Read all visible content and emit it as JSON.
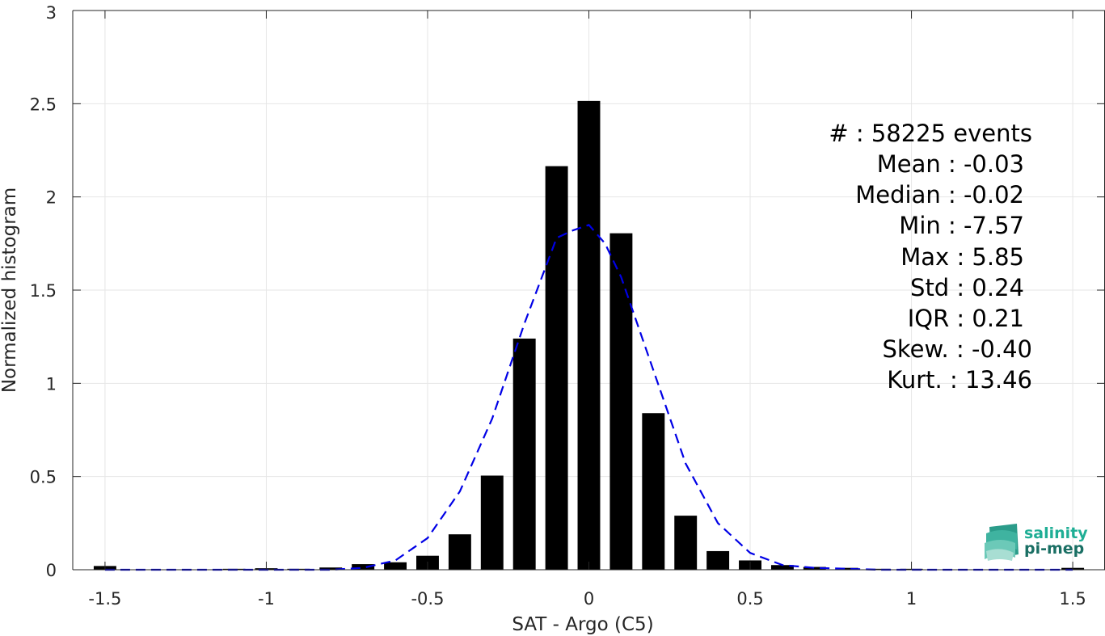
{
  "chart_data": {
    "type": "bar",
    "xlabel": "SAT - Argo (C5)",
    "ylabel": "Normalized histogram",
    "xlim": [
      -1.6,
      1.6
    ],
    "ylim": [
      0,
      3
    ],
    "xticks": [
      -1.5,
      -1,
      -0.5,
      0,
      0.5,
      1,
      1.5
    ],
    "xtick_labels": [
      "-1.5",
      "-1",
      "-0.5",
      "0",
      "0.5",
      "1",
      "1.5"
    ],
    "yticks": [
      0,
      0.5,
      1,
      1.5,
      2,
      2.5,
      3
    ],
    "ytick_labels": [
      "0",
      "0.5",
      "1",
      "1.5",
      "2",
      "2.5",
      "3"
    ],
    "grid": true,
    "bin_width": 0.1,
    "bars": {
      "color": "#000000",
      "x": [
        -1.5,
        -1.4,
        -1.3,
        -1.2,
        -1.1,
        -1.0,
        -0.9,
        -0.8,
        -0.7,
        -0.6,
        -0.5,
        -0.4,
        -0.3,
        -0.2,
        -0.1,
        0.0,
        0.1,
        0.2,
        0.3,
        0.4,
        0.5,
        0.6,
        0.7,
        0.8,
        0.9,
        1.0,
        1.1,
        1.2,
        1.3,
        1.4,
        1.5
      ],
      "values": [
        0.02,
        0.0,
        0.0,
        0.0,
        0.005,
        0.008,
        0.005,
        0.012,
        0.03,
        0.04,
        0.075,
        0.19,
        0.505,
        1.24,
        2.165,
        2.515,
        1.805,
        0.84,
        0.29,
        0.1,
        0.05,
        0.025,
        0.015,
        0.01,
        0.005,
        0.005,
        0.002,
        0.002,
        0.002,
        0.002,
        0.01
      ]
    },
    "fit": {
      "style": "dashed",
      "color": "#0000e6",
      "x": [
        -1.5,
        -1.4,
        -1.3,
        -1.2,
        -1.1,
        -1.0,
        -0.9,
        -0.8,
        -0.7,
        -0.6,
        -0.5,
        -0.4,
        -0.3,
        -0.2,
        -0.1,
        -0.05,
        0.0,
        0.05,
        0.1,
        0.2,
        0.3,
        0.4,
        0.5,
        0.6,
        0.7,
        0.8,
        0.9,
        1.0,
        1.1,
        1.2,
        1.3,
        1.4,
        1.5
      ],
      "values": [
        0.0,
        0.0,
        0.0,
        0.0,
        0.0,
        0.0,
        0.0,
        0.0,
        0.01,
        0.05,
        0.17,
        0.42,
        0.81,
        1.32,
        1.78,
        1.82,
        1.85,
        1.75,
        1.57,
        1.07,
        0.57,
        0.25,
        0.09,
        0.025,
        0.01,
        0.005,
        0.0,
        0.0,
        0.0,
        0.0,
        0.0,
        0.0,
        0.0
      ]
    }
  },
  "stats": [
    {
      "text": "#  : 58225 events"
    },
    {
      "text": "Mean : -0.03"
    },
    {
      "text": "Median : -0.02"
    },
    {
      "text": "Min : -7.57"
    },
    {
      "text": "Max : 5.85"
    },
    {
      "text": "Std : 0.24"
    },
    {
      "text": "IQR : 0.21"
    },
    {
      "text": "Skew. : -0.40"
    },
    {
      "text": "Kurt. : 13.46"
    }
  ],
  "logo": {
    "line1": "salinity",
    "line2": "pi-mep",
    "color": "#1a9a86"
  }
}
